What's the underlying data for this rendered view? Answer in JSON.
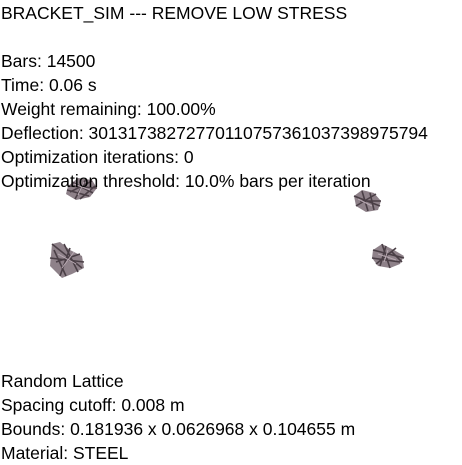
{
  "title": "BRACKET_SIM --- REMOVE LOW STRESS",
  "stats": {
    "bars": "Bars: 14500",
    "time": "Time: 0.06 s",
    "weight": "Weight remaining: 100.00%",
    "deflection": "Deflection: 30131738272770110757361037398975794",
    "iterations": "Optimization iterations: 0",
    "threshold": "Optimization threshold: 10.0% bars per iteration"
  },
  "lattice": {
    "type": "Random Lattice",
    "spacing": "Spacing cutoff: 0.008 m",
    "bounds": "Bounds: 0.181936 x 0.0626968 x 0.104655 m",
    "material": "Material: STEEL"
  },
  "colors": {
    "background": "#ffffff",
    "text": "#000000",
    "lattice_dark": "#4a3f46",
    "lattice_mid": "#7a6b74",
    "lattice_light": "#b9aab3"
  }
}
